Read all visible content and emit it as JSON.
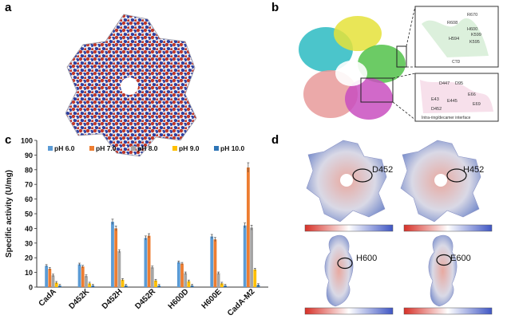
{
  "panels": {
    "a": "a",
    "b": "b",
    "c": "c",
    "d": "d"
  },
  "panel_b": {
    "inset_top_residues": [
      "R670",
      "R608",
      "H600",
      "K599",
      "H594",
      "K595"
    ],
    "inset_top_caption": "CTD",
    "inset_bottom_residues": [
      "D447",
      "D95",
      "E66",
      "E43",
      "E445",
      "E69",
      "D452"
    ],
    "inset_bottom_caption": "Intra-ring/decamer interface"
  },
  "panel_d": {
    "labels": [
      "D452",
      "H452",
      "H600",
      "E600"
    ]
  },
  "colors": {
    "ph6": "#5b9bd5",
    "ph7": "#ed7d31",
    "ph8": "#a5a5a5",
    "ph9": "#ffc000",
    "ph10": "#2e75b6",
    "surface_red": "#c0392b",
    "surface_blue": "#2c3e9e"
  },
  "chart_data": {
    "type": "bar",
    "ylabel": "Specific activity (U/mg)",
    "ylim": [
      0,
      100
    ],
    "yticks": [
      0,
      10,
      20,
      30,
      40,
      50,
      60,
      70,
      80,
      90,
      100
    ],
    "categories": [
      "CadA",
      "D452K",
      "D452H",
      "D452R",
      "H600D",
      "H600E",
      "CadA-M2"
    ],
    "legend_position": "top",
    "series": [
      {
        "name": "pH 6.0",
        "values": [
          14.5,
          15.5,
          44.5,
          33.5,
          17,
          34.5,
          42
        ]
      },
      {
        "name": "pH 7.0",
        "values": [
          12.5,
          14,
          40,
          35,
          16,
          32.5,
          81.5
        ]
      },
      {
        "name": "pH 8.0",
        "values": [
          8,
          7.5,
          24.5,
          13.5,
          9.5,
          9.5,
          40.5
        ]
      },
      {
        "name": "pH 9.0",
        "values": [
          3,
          2.5,
          5,
          4.5,
          4,
          2.5,
          12
        ]
      },
      {
        "name": "pH 10.0",
        "values": [
          1,
          1,
          1,
          1,
          1,
          1,
          1.5
        ]
      }
    ]
  }
}
